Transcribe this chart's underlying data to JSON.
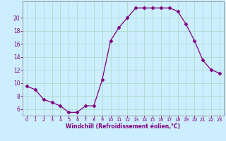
{
  "x": [
    0,
    1,
    2,
    3,
    4,
    5,
    6,
    7,
    8,
    9,
    10,
    11,
    12,
    13,
    14,
    15,
    16,
    17,
    18,
    19,
    20,
    21,
    22,
    23
  ],
  "y": [
    9.5,
    9.0,
    7.5,
    7.0,
    6.5,
    5.5,
    5.5,
    6.5,
    6.5,
    10.5,
    16.5,
    18.5,
    20.0,
    21.5,
    21.5,
    21.5,
    21.5,
    21.5,
    21.0,
    19.0,
    16.5,
    13.5,
    12.0,
    11.5
  ],
  "line_color": "#800080",
  "marker": "D",
  "marker_size": 2.5,
  "bg_color": "#cceeff",
  "grid_color": "#aaddcc",
  "xlabel": "Windchill (Refroidissement éolien,°C)",
  "xlabel_color": "#800080",
  "tick_color": "#800080",
  "ylim": [
    5.0,
    22.5
  ],
  "xlim": [
    -0.5,
    23.5
  ],
  "yticks": [
    6,
    8,
    10,
    12,
    14,
    16,
    18,
    20
  ],
  "xticks": [
    0,
    1,
    2,
    3,
    4,
    5,
    6,
    7,
    8,
    9,
    10,
    11,
    12,
    13,
    14,
    15,
    16,
    17,
    18,
    19,
    20,
    21,
    22,
    23
  ]
}
